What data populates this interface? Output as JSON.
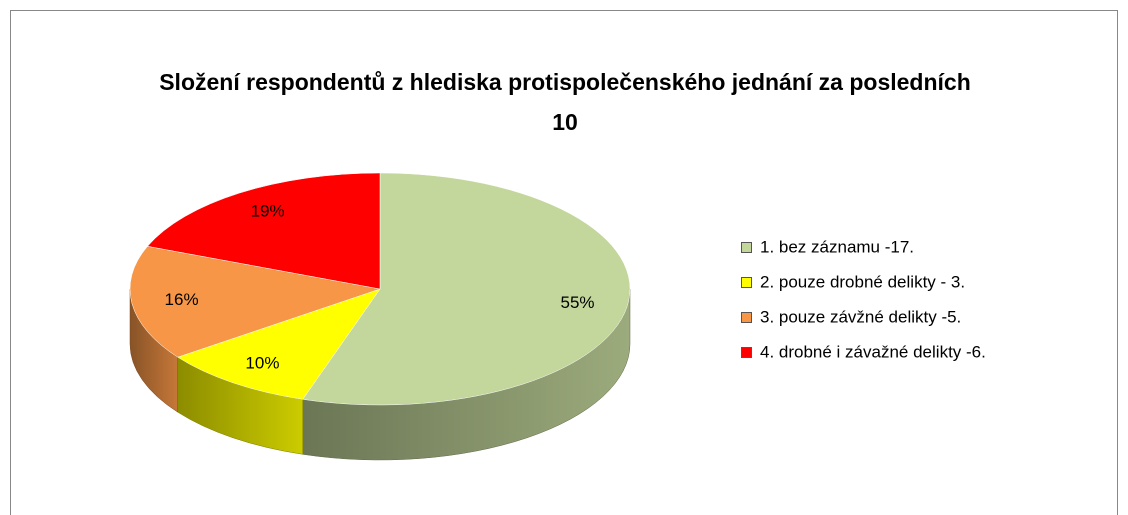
{
  "chart_data": {
    "type": "pie",
    "title": "Složení respondentů z hlediska protispolečenského jednání za posledních 10",
    "categories": [
      "1. bez záznamu -17.",
      "2. pouze drobné delikty - 3.",
      "3. pouze závžné delikty -5.",
      "4. drobné i závažné delikty -6."
    ],
    "values": [
      55,
      10,
      16,
      19
    ],
    "value_labels": [
      "55%",
      "10%",
      "16%",
      "19%"
    ],
    "colors": [
      "#c3d69b",
      "#ffff00",
      "#f79646",
      "#ff0000"
    ],
    "legend": "right"
  }
}
